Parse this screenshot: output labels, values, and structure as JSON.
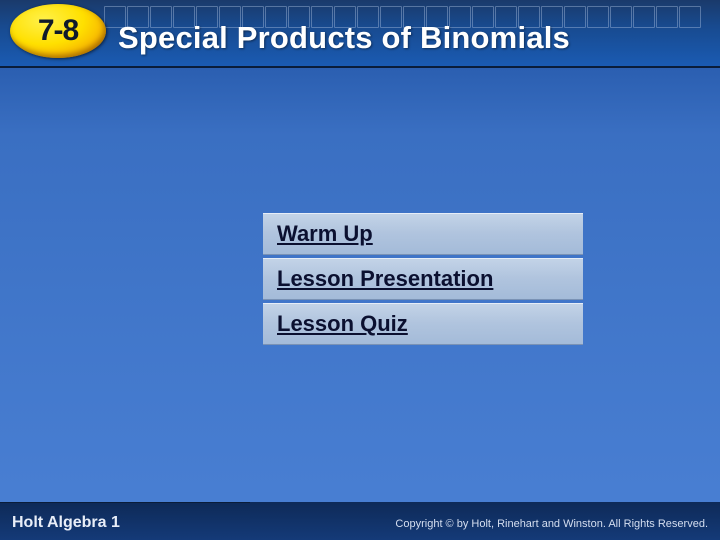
{
  "header": {
    "lesson_number": "7-8",
    "title": "Special Products of Binomials",
    "badge_gradient_inner": "#fff14a",
    "badge_gradient_mid": "#ffe000",
    "badge_gradient_outer": "#cc7a00",
    "title_color": "#ffffff",
    "title_fontsize_pt": 23
  },
  "nav": {
    "items": [
      {
        "label": "Warm Up"
      },
      {
        "label": "Lesson Presentation"
      },
      {
        "label": "Lesson Quiz"
      }
    ],
    "item_bg_top": "#c3d3e7",
    "item_bg_bottom": "#a4bbd9",
    "link_color": "#0b1030",
    "link_fontsize_pt": 16
  },
  "background": {
    "gradient_top": "#1a4d9e",
    "gradient_bottom": "#4a80d4"
  },
  "footer": {
    "course_name": "Holt Algebra 1",
    "copyright_text": "Copyright © by Holt, Rinehart and Winston. All Rights Reserved.",
    "bg_top": "#0e2a58",
    "bg_bottom": "#143a78",
    "text_color": "#e8eef8"
  }
}
